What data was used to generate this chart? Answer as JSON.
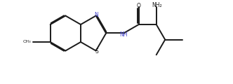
{
  "background_color": "#ffffff",
  "line_color": "#1a1a1a",
  "text_color": "#1a1a1a",
  "label_color_N": "#4444cc",
  "line_width": 1.4,
  "figsize": [
    3.32,
    1.2
  ],
  "dpi": 100,
  "xlim": [
    0,
    33.2
  ],
  "ylim": [
    0,
    12.0
  ]
}
